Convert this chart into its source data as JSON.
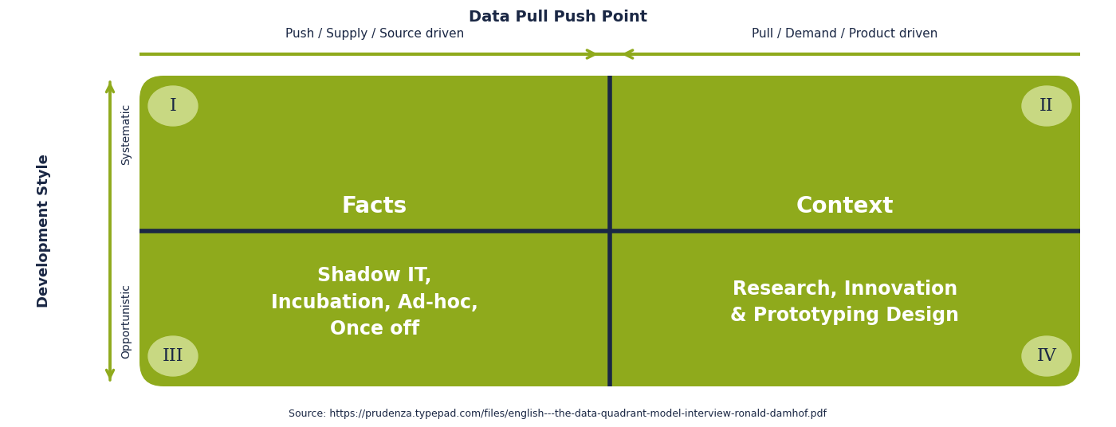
{
  "title": "Data Pull Push Point",
  "bg_color": "#ffffff",
  "quadrant_color": "#8faa1c",
  "divider_color": "#1a2744",
  "axis_arrow_color": "#8faa1c",
  "roman_bg_color": "#c8d882",
  "text_color_white": "#ffffff",
  "text_color_dark": "#1a2744",
  "quadrant_labels": [
    "Facts",
    "Context",
    "Shadow IT,\nIncubation, Ad-hoc,\nOnce off",
    "Research, Innovation\n& Prototyping Design"
  ],
  "roman_numerals": [
    "I",
    "II",
    "III",
    "IV"
  ],
  "left_label_top": "Push / Supply / Source driven",
  "right_label_top": "Pull / Demand / Product driven",
  "y_axis_label": "Development Style",
  "y_axis_top": "Systematic",
  "y_axis_bottom": "Opportunistic",
  "source_text": "Source: https://prudenza.typepad.com/files/english---the-data-quadrant-model-interview-ronald-damhof.pdf"
}
